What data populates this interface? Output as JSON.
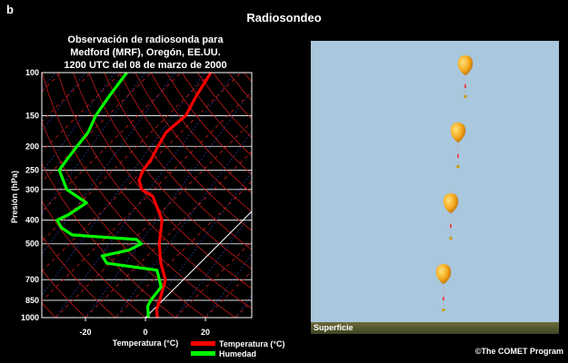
{
  "panel_letter": "b",
  "page_title": "Radiosondeo",
  "chart": {
    "title_lines": [
      "Observación de radiosonda para",
      "Medford (MRF), Oregón, EE.UU.",
      "1200 UTC del 08 de marzo de 2000"
    ]
  },
  "legend": {
    "temperature": "Temperatura (°C)",
    "humidity": "Humedad"
  },
  "animation": {
    "surface_label": "Superficie"
  },
  "credit": "©The COMET Program",
  "colors": {
    "temperature": "#ff0000",
    "humidity": "#00ff00",
    "isotherm": "#d21a1a",
    "dry_adiabat": "#c21a1a",
    "mixing_ratio": "#3a4fd0",
    "sky": "#a9c7dd",
    "balloon": "#f4a81c"
  },
  "chart_data": {
    "type": "line",
    "title": "Observación de radiosonda para Medford (MRF), Oregón, EE.UU. 1200 UTC del 08 de marzo de 2000",
    "xlabel": "Temperatura (°C)",
    "ylabel": "Presión (hPa)",
    "x_ticks": [
      -20,
      0,
      20
    ],
    "y_ticks": [
      100,
      150,
      200,
      250,
      300,
      400,
      500,
      700,
      850,
      1000
    ],
    "y_scale": "log",
    "ylim": [
      1000,
      100
    ],
    "grid": true,
    "series": [
      {
        "name": "Temperatura (°C)",
        "color": "#ff0000",
        "points": [
          {
            "p": 1000,
            "t": 4
          },
          {
            "p": 925,
            "t": 1
          },
          {
            "p": 850,
            "t": -1
          },
          {
            "p": 700,
            "t": -6
          },
          {
            "p": 600,
            "t": -13
          },
          {
            "p": 500,
            "t": -20
          },
          {
            "p": 400,
            "t": -27
          },
          {
            "p": 320,
            "t": -38
          },
          {
            "p": 300,
            "t": -44
          },
          {
            "p": 275,
            "t": -48
          },
          {
            "p": 250,
            "t": -50
          },
          {
            "p": 225,
            "t": -51
          },
          {
            "p": 200,
            "t": -53
          },
          {
            "p": 175,
            "t": -55
          },
          {
            "p": 150,
            "t": -54
          },
          {
            "p": 125,
            "t": -57
          },
          {
            "p": 100,
            "t": -60
          }
        ]
      },
      {
        "name": "Humedad",
        "color": "#00ff00",
        "points": [
          {
            "p": 1000,
            "t": 1
          },
          {
            "p": 900,
            "t": -3
          },
          {
            "p": 850,
            "t": -4
          },
          {
            "p": 750,
            "t": -5
          },
          {
            "p": 700,
            "t": -8
          },
          {
            "p": 640,
            "t": -12
          },
          {
            "p": 600,
            "t": -31
          },
          {
            "p": 560,
            "t": -35
          },
          {
            "p": 530,
            "t": -28
          },
          {
            "p": 500,
            "t": -26
          },
          {
            "p": 480,
            "t": -29
          },
          {
            "p": 460,
            "t": -52
          },
          {
            "p": 430,
            "t": -58
          },
          {
            "p": 400,
            "t": -62
          },
          {
            "p": 380,
            "t": -60
          },
          {
            "p": 340,
            "t": -58
          },
          {
            "p": 300,
            "t": -69
          },
          {
            "p": 250,
            "t": -78
          },
          {
            "p": 225,
            "t": -79
          },
          {
            "p": 200,
            "t": -80
          },
          {
            "p": 175,
            "t": -81
          },
          {
            "p": 150,
            "t": -84
          },
          {
            "p": 125,
            "t": -86
          },
          {
            "p": 100,
            "t": -88
          }
        ]
      }
    ]
  }
}
